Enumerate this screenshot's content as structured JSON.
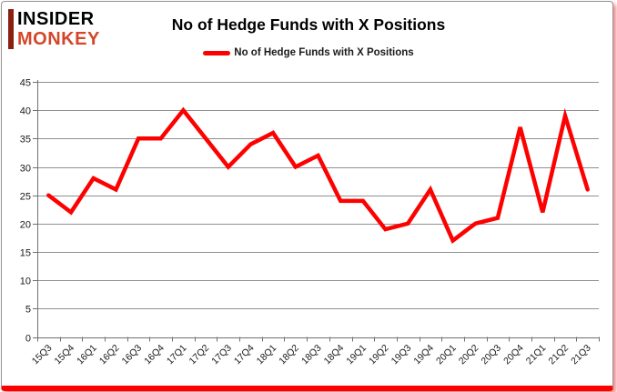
{
  "logo": {
    "line1": "INSIDER",
    "line2": "MONKEY"
  },
  "title": "No of Hedge Funds with X Positions",
  "legend": {
    "label": "No of Hedge Funds with X Positions",
    "marker_color": "#fe0000"
  },
  "colors": {
    "line": "#fe0000",
    "grid": "#909090",
    "axis": "#707070",
    "text": "#1a1a1a",
    "logo_red": "#d4462a",
    "logo_bar": "#8b2012",
    "bottom_bar": "#fe0000"
  },
  "y_axis": {
    "ticks": [
      0,
      5,
      10,
      15,
      20,
      25,
      30,
      35,
      40,
      45
    ]
  },
  "chart_data": {
    "type": "line",
    "title": "No of Hedge Funds with X Positions",
    "categories": [
      "15Q3",
      "15Q4",
      "16Q1",
      "16Q2",
      "16Q3",
      "16Q4",
      "17Q1",
      "17Q2",
      "17Q3",
      "17Q4",
      "18Q1",
      "18Q2",
      "18Q3",
      "18Q4",
      "19Q1",
      "19Q2",
      "19Q3",
      "19Q4",
      "20Q1",
      "20Q2",
      "20Q3",
      "20Q4",
      "21Q1",
      "21Q2",
      "21Q3"
    ],
    "series": [
      {
        "name": "No of Hedge Funds with X Positions",
        "values": [
          25,
          22,
          28,
          26,
          35,
          35,
          40,
          35,
          30,
          34,
          36,
          30,
          32,
          24,
          24,
          19,
          20,
          26,
          17,
          20,
          21,
          37,
          22,
          39,
          26
        ]
      }
    ],
    "xlabel": "",
    "ylabel": "",
    "ylim": [
      0,
      45
    ],
    "ytick_step": 5,
    "grid": true,
    "legend_position": "top-center",
    "x_label_rotation": -45
  }
}
